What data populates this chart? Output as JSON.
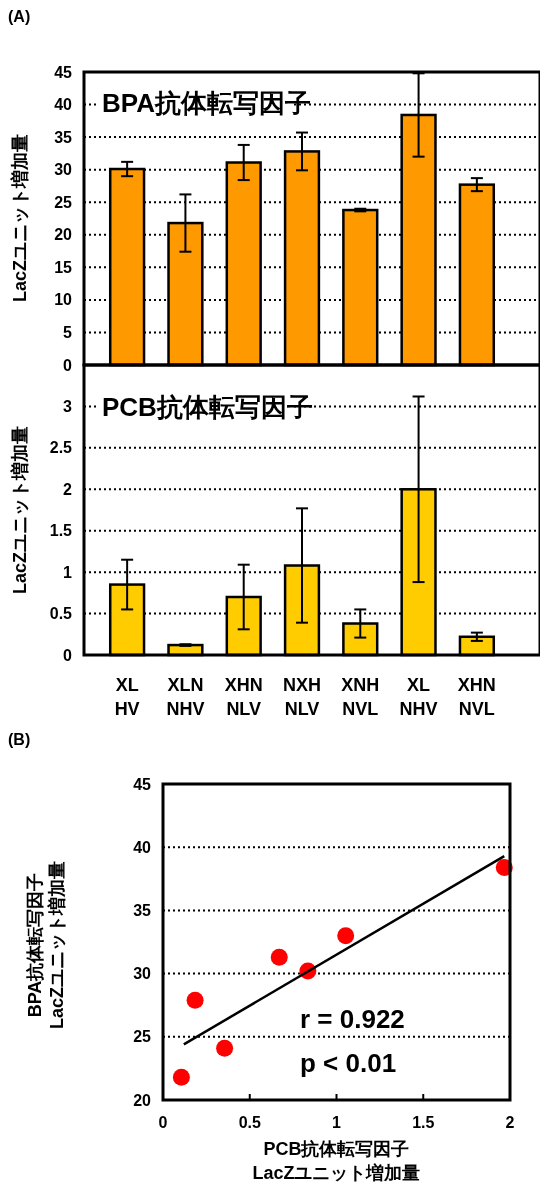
{
  "chart_data": [
    {
      "type": "bar",
      "title": "BPA抗体転写因子",
      "ylabel": "LacZユニット増加量",
      "annotations": [
        "(A)"
      ],
      "categories": [
        null,
        null,
        null,
        null,
        null,
        null,
        null
      ],
      "series": [
        {
          "color": "#ff9900",
          "values": [
            30.1,
            21.8,
            31.1,
            32.8,
            23.8,
            38.4,
            27.7
          ],
          "errors": [
            1.1,
            4.4,
            2.7,
            2.9,
            0.2,
            6.4,
            1.0
          ]
        }
      ],
      "ylim": [
        0,
        45
      ],
      "yticks": [
        0,
        5,
        10,
        15,
        20,
        25,
        30,
        35,
        40,
        45
      ],
      "grid": "y",
      "tick_labels": "y"
    },
    {
      "type": "bar",
      "title": "PCB抗体転写因子",
      "ylabel": "LacZユニット増加量",
      "categories": [
        "XL\nHV",
        "XLN\nNHV",
        "XHN\nNLV",
        "NXH\nNLV",
        "XNH\nNVL",
        "XL\nNHV",
        "XHN\nNVL"
      ],
      "series": [
        {
          "color": "#ffcc00",
          "values": [
            0.85,
            0.12,
            0.7,
            1.08,
            0.38,
            2.0,
            0.22
          ],
          "errors": [
            0.3,
            0.01,
            0.39,
            0.69,
            0.17,
            1.12,
            0.05
          ]
        }
      ],
      "ylim": [
        0,
        3.5
      ],
      "yticks": [
        0,
        0.5,
        1,
        1.5,
        2,
        2.5,
        3
      ],
      "grid": "y"
    },
    {
      "type": "scatter",
      "xlabel": "PCB抗体転写因子\nLacZユニット増加量",
      "ylabel": "BPA抗体転写因子\nLacZユニット増加量",
      "annotations": [
        "(B)",
        "r = 0.922",
        "p < 0.01"
      ],
      "series": [
        {
          "color": "#ff0000",
          "marker": "circle",
          "x": [
            0.106,
            0.185,
            0.355,
            0.67,
            0.835,
            1.053,
            1.967
          ],
          "values": [
            21.8,
            27.9,
            24.1,
            31.3,
            30.2,
            33.0,
            38.4
          ]
        },
        {
          "type": "line",
          "color": "#000000",
          "marker": "none",
          "x": [
            0.12,
            1.967
          ],
          "values": [
            24.4,
            39.3
          ]
        }
      ],
      "xlim": [
        0,
        2
      ],
      "xticks": [
        0,
        0.5,
        1,
        1.5,
        2
      ],
      "ylim": [
        20,
        45
      ],
      "yticks": [
        20,
        25,
        30,
        35,
        40,
        45
      ],
      "grid": "y"
    }
  ]
}
